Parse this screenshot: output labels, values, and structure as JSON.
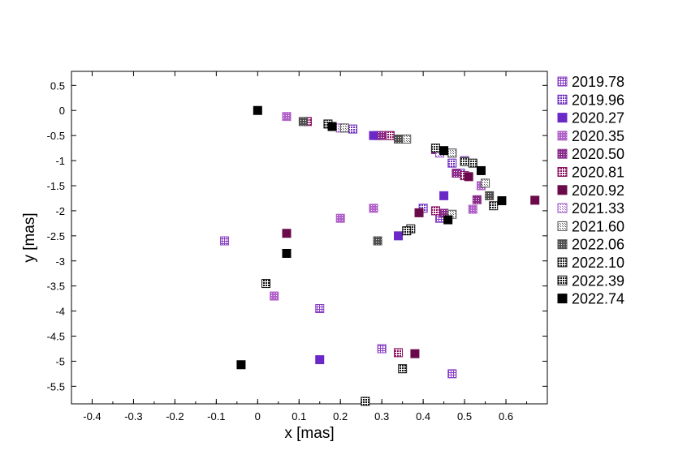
{
  "chart_data": {
    "type": "scatter",
    "xlabel": "x [mas]",
    "ylabel": "y [mas]",
    "xlim": [
      -0.45,
      0.7
    ],
    "ylim": [
      -5.85,
      0.78
    ],
    "xticks": [
      "-0.4",
      "-0.3",
      "-0.2",
      "-0.1",
      "0",
      "0.1",
      "0.2",
      "0.3",
      "0.4",
      "0.5",
      "0.6"
    ],
    "yticks": [
      "0.5",
      "0",
      "-0.5",
      "-1",
      "-1.5",
      "-2",
      "-2.5",
      "-3",
      "-3.5",
      "-4",
      "-4.5",
      "-5",
      "-5.5"
    ],
    "grid": false,
    "legend_position": "right",
    "series": [
      {
        "name": "2019.78",
        "color": "#8a3fc4",
        "pattern": "grid",
        "points": [
          [
            -0.08,
            -2.6
          ],
          [
            0.15,
            -3.95
          ],
          [
            0.3,
            -4.75
          ],
          [
            0.47,
            -5.25
          ],
          [
            0.44,
            -2.15
          ],
          [
            0.5,
            -1.0
          ],
          [
            0.47,
            -0.85
          ],
          [
            0.29,
            -0.5
          ]
        ]
      },
      {
        "name": "2019.96",
        "color": "#7030c0",
        "pattern": "dots",
        "points": [
          [
            0.47,
            -1.05
          ],
          [
            0.49,
            -1.25
          ],
          [
            0.4,
            -1.95
          ],
          [
            0.23,
            -0.37
          ]
        ]
      },
      {
        "name": "2020.27",
        "color": "#6a28c8",
        "pattern": "solid",
        "points": [
          [
            0.45,
            -1.7
          ],
          [
            0.34,
            -2.5
          ],
          [
            0.15,
            -4.97
          ],
          [
            0.28,
            -0.5
          ]
        ]
      },
      {
        "name": "2020.35",
        "color": "#b060c8",
        "pattern": "dense",
        "points": [
          [
            0.07,
            -0.12
          ],
          [
            0.2,
            -2.15
          ],
          [
            0.28,
            -1.95
          ],
          [
            0.04,
            -3.7
          ],
          [
            0.52,
            -1.97
          ],
          [
            0.54,
            -1.5
          ]
        ]
      },
      {
        "name": "2020.50",
        "color": "#8a2a8a",
        "pattern": "dense",
        "points": [
          [
            0.43,
            -0.78
          ],
          [
            0.3,
            -0.5
          ],
          [
            0.45,
            -2.05
          ],
          [
            0.53,
            -1.78
          ],
          [
            0.48,
            -1.25
          ]
        ]
      },
      {
        "name": "2020.81",
        "color": "#8a1060",
        "pattern": "dots",
        "points": [
          [
            0.32,
            -0.5
          ],
          [
            0.12,
            -0.22
          ],
          [
            0.34,
            -4.83
          ],
          [
            0.43,
            -2.0
          ],
          [
            0.5,
            -1.3
          ]
        ]
      },
      {
        "name": "2020.92",
        "color": "#6a0a4a",
        "pattern": "solid",
        "points": [
          [
            0.07,
            -2.45
          ],
          [
            0.39,
            -2.04
          ],
          [
            0.38,
            -4.85
          ],
          [
            0.51,
            -1.32
          ],
          [
            0.67,
            -1.79
          ]
        ]
      },
      {
        "name": "2021.33",
        "color": "#9a50c8",
        "pattern": "checker",
        "points": [
          [
            0.2,
            -0.35
          ],
          [
            0.44,
            -0.85
          ]
        ]
      },
      {
        "name": "2021.60",
        "color": "#505050",
        "pattern": "checker",
        "points": [
          [
            0.21,
            -0.35
          ],
          [
            0.47,
            -2.07
          ],
          [
            0.47,
            -0.85
          ],
          [
            0.55,
            -1.45
          ],
          [
            0.36,
            -0.57
          ]
        ]
      },
      {
        "name": "2022.06",
        "color": "#505050",
        "pattern": "dense",
        "points": [
          [
            0.11,
            -0.22
          ],
          [
            0.29,
            -2.6
          ],
          [
            0.34,
            -0.57
          ],
          [
            0.56,
            -1.7
          ]
        ]
      },
      {
        "name": "2022.10",
        "color": "#202020",
        "pattern": "dots",
        "points": [
          [
            0.37,
            -2.36
          ],
          [
            0.57,
            -1.9
          ],
          [
            0.52,
            -1.05
          ],
          [
            0.5,
            -1.02
          ],
          [
            0.43,
            -0.75
          ]
        ]
      },
      {
        "name": "2022.39",
        "color": "#101010",
        "pattern": "dots",
        "points": [
          [
            0.02,
            -3.45
          ],
          [
            0.35,
            -5.15
          ],
          [
            0.36,
            -2.4
          ],
          [
            0.17,
            -0.27
          ],
          [
            0.26,
            -5.8
          ]
        ]
      },
      {
        "name": "2022.74",
        "color": "#000000",
        "pattern": "solid",
        "points": [
          [
            0.0,
            0.0
          ],
          [
            0.07,
            -2.85
          ],
          [
            -0.04,
            -5.07
          ],
          [
            0.46,
            -2.18
          ],
          [
            0.59,
            -1.8
          ],
          [
            0.45,
            -0.8
          ],
          [
            0.54,
            -1.2
          ],
          [
            0.18,
            -0.32
          ]
        ]
      }
    ]
  }
}
